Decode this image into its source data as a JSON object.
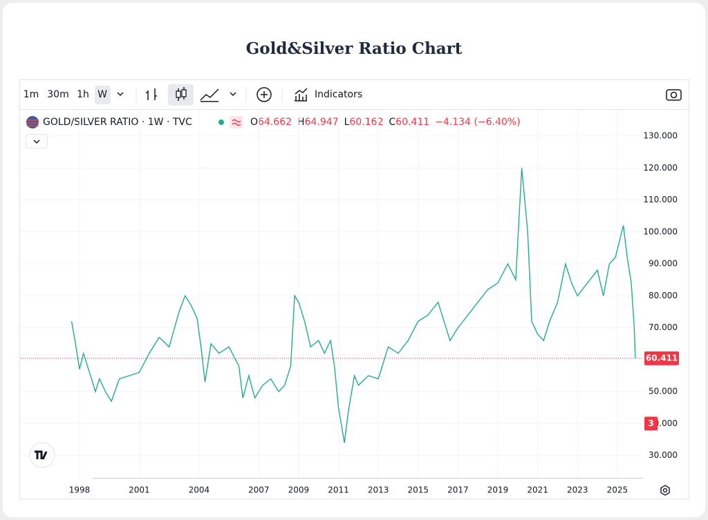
{
  "header": {
    "title": "Gold&Silver Ratio Chart"
  },
  "toolbar": {
    "intervals": [
      "1m",
      "30m",
      "1h",
      "W"
    ],
    "indicators": "Indicators"
  },
  "legend": {
    "symbol": "GOLD/SILVER RATIO · 1W · TVC",
    "quote": [
      {
        "key": "O",
        "value": "64.662"
      },
      {
        "key": "H",
        "value": "64.947"
      },
      {
        "key": "L",
        "value": "60.162"
      },
      {
        "key": "C",
        "value": "60.411"
      }
    ],
    "change": "−4.134 (−6.40%)"
  },
  "badge": "3",
  "chart_data": {
    "type": "line",
    "series": [
      {
        "name": "GOLD/SILVER RATIO",
        "color": "#22ab94",
        "x": [
          1997.6,
          1997.8,
          1998.0,
          1998.2,
          1998.5,
          1998.8,
          1999.0,
          1999.3,
          1999.6,
          2000.0,
          2000.5,
          2001.0,
          2001.5,
          2002.0,
          2002.5,
          2003.0,
          2003.3,
          2003.6,
          2003.9,
          2004.1,
          2004.3,
          2004.6,
          2005.0,
          2005.5,
          2006.0,
          2006.2,
          2006.5,
          2006.8,
          2007.2,
          2007.6,
          2008.0,
          2008.3,
          2008.6,
          2008.8,
          2009.0,
          2009.3,
          2009.6,
          2010.0,
          2010.3,
          2010.6,
          2010.8,
          2011.0,
          2011.3,
          2011.5,
          2011.8,
          2012.0,
          2012.5,
          2013.0,
          2013.5,
          2014.0,
          2014.5,
          2015.0,
          2015.5,
          2016.0,
          2016.3,
          2016.6,
          2017.0,
          2017.5,
          2018.0,
          2018.5,
          2019.0,
          2019.5,
          2019.9,
          2020.2,
          2020.5,
          2020.7,
          2021.0,
          2021.3,
          2021.6,
          2022.0,
          2022.4,
          2022.7,
          2023.0,
          2023.5,
          2024.0,
          2024.3,
          2024.6,
          2024.9,
          2025.3,
          2025.5,
          2025.7,
          2025.85,
          2025.9
        ],
        "values": [
          72,
          65,
          57,
          62,
          56,
          50,
          54,
          50,
          47,
          54,
          55,
          56,
          62,
          67,
          64,
          75,
          80,
          77,
          73,
          64,
          53,
          65,
          62,
          64,
          58,
          48,
          55,
          48,
          52,
          54,
          50,
          52,
          58,
          80,
          78,
          72,
          64,
          66,
          62,
          66,
          58,
          45,
          34,
          44,
          55,
          52,
          55,
          54,
          64,
          62,
          66,
          72,
          74,
          78,
          72,
          66,
          70,
          74,
          78,
          82,
          84,
          90,
          85,
          120,
          100,
          72,
          68,
          66,
          72,
          78,
          90,
          84,
          80,
          84,
          88,
          80,
          90,
          92,
          102,
          92,
          84,
          70,
          60.411
        ]
      }
    ],
    "last_price": 60.411,
    "xlim": [
      1995.05,
      2026.29
    ],
    "xticks": [
      1998,
      2001,
      2004,
      2007,
      2009,
      2011,
      2013,
      2015,
      2017,
      2019,
      2021,
      2023,
      2025
    ],
    "ylim": [
      23,
      138
    ],
    "yticks": [
      {
        "value": 30,
        "label": "30.000"
      },
      {
        "value": 40,
        "label": "40.000"
      },
      {
        "value": 50,
        "label": "50.000"
      },
      {
        "value": 60,
        "label": "60.000"
      },
      {
        "value": 70,
        "label": "70.000"
      },
      {
        "value": 80,
        "label": "80.000"
      },
      {
        "value": 90,
        "label": "90.000"
      },
      {
        "value": 100,
        "label": "100.000"
      },
      {
        "value": 110,
        "label": "110.000"
      },
      {
        "value": 120,
        "label": "120.000"
      },
      {
        "value": 130,
        "label": "130.000"
      }
    ],
    "grid": true
  }
}
